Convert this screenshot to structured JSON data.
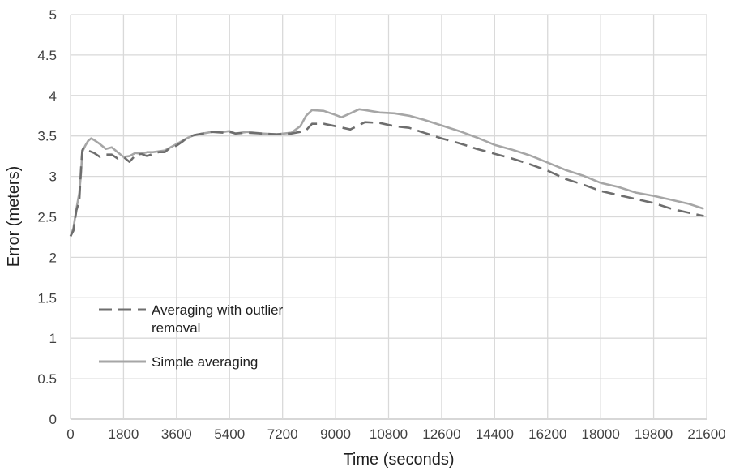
{
  "chart_data": {
    "type": "line",
    "title": "",
    "xlabel": "Time (seconds)",
    "ylabel": "Error (meters)",
    "xlim": [
      0,
      21600
    ],
    "ylim": [
      0,
      5
    ],
    "x_ticks": [
      "0",
      "1800",
      "3600",
      "5400",
      "7200",
      "9000",
      "10800",
      "12600",
      "14400",
      "16200",
      "18000",
      "19800",
      "21600"
    ],
    "y_ticks": [
      "0",
      "0.5",
      "1",
      "1.5",
      "2",
      "2.5",
      "3",
      "3.5",
      "4",
      "4.5",
      "5"
    ],
    "grid": "vertical and horizontal",
    "legend_position": "lower-left",
    "series": [
      {
        "name": "Averaging with outlier removal",
        "color": "#6e6e6e",
        "dash": true,
        "x": [
          0,
          100,
          200,
          300,
          360,
          400,
          450,
          500,
          600,
          800,
          1000,
          1200,
          1400,
          1600,
          1800,
          2000,
          2200,
          2400,
          2600,
          2800,
          3000,
          3200,
          3400,
          3600,
          3800,
          4000,
          4200,
          4500,
          4800,
          5200,
          5400,
          5600,
          6000,
          6500,
          7000,
          7500,
          7800,
          8000,
          8200,
          8600,
          9000,
          9500,
          10000,
          10500,
          11000,
          11500,
          12000,
          12600,
          13200,
          13800,
          14400,
          15000,
          15600,
          16200,
          16800,
          17400,
          18000,
          18600,
          19200,
          19800,
          20400,
          21000,
          21500
        ],
        "values": [
          2.26,
          2.33,
          2.58,
          2.7,
          3.12,
          3.32,
          3.36,
          3.35,
          3.32,
          3.29,
          3.24,
          3.27,
          3.27,
          3.22,
          3.24,
          3.18,
          3.26,
          3.28,
          3.25,
          3.28,
          3.3,
          3.3,
          3.36,
          3.38,
          3.43,
          3.49,
          3.51,
          3.53,
          3.55,
          3.54,
          3.55,
          3.53,
          3.54,
          3.53,
          3.52,
          3.53,
          3.55,
          3.57,
          3.65,
          3.65,
          3.62,
          3.58,
          3.67,
          3.66,
          3.62,
          3.6,
          3.54,
          3.47,
          3.41,
          3.34,
          3.28,
          3.22,
          3.15,
          3.07,
          2.97,
          2.9,
          2.82,
          2.77,
          2.72,
          2.67,
          2.6,
          2.55,
          2.51
        ]
      },
      {
        "name": "Simple averaging",
        "color": "#a6a6a6",
        "dash": false,
        "x": [
          0,
          100,
          200,
          300,
          360,
          400,
          500,
          600,
          700,
          800,
          1000,
          1200,
          1400,
          1600,
          1800,
          2000,
          2200,
          2400,
          2600,
          2800,
          3000,
          3200,
          3400,
          3600,
          3800,
          4000,
          4200,
          4500,
          4800,
          5200,
          5400,
          5600,
          6000,
          6500,
          7000,
          7500,
          7800,
          8000,
          8200,
          8600,
          9000,
          9200,
          9500,
          9800,
          10000,
          10500,
          11000,
          11500,
          12000,
          12600,
          13200,
          13800,
          14400,
          15000,
          15600,
          16200,
          16800,
          17400,
          18000,
          18600,
          19200,
          19800,
          20400,
          21000,
          21500
        ],
        "values": [
          2.26,
          2.36,
          2.6,
          2.8,
          3.05,
          3.3,
          3.38,
          3.44,
          3.47,
          3.45,
          3.4,
          3.34,
          3.36,
          3.3,
          3.24,
          3.25,
          3.29,
          3.28,
          3.3,
          3.3,
          3.31,
          3.32,
          3.36,
          3.4,
          3.44,
          3.48,
          3.51,
          3.53,
          3.55,
          3.55,
          3.56,
          3.53,
          3.55,
          3.53,
          3.52,
          3.54,
          3.62,
          3.75,
          3.82,
          3.81,
          3.76,
          3.73,
          3.78,
          3.83,
          3.82,
          3.79,
          3.78,
          3.75,
          3.7,
          3.63,
          3.56,
          3.48,
          3.39,
          3.33,
          3.26,
          3.17,
          3.08,
          3.01,
          2.92,
          2.87,
          2.8,
          2.76,
          2.71,
          2.66,
          2.6
        ]
      }
    ]
  }
}
